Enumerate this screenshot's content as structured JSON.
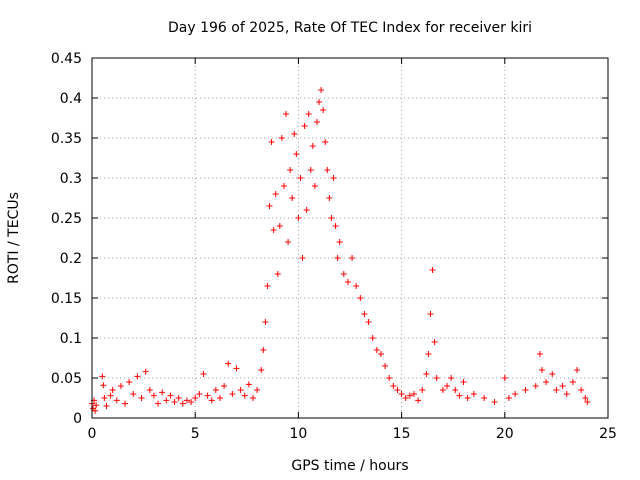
{
  "chart_data": {
    "type": "scatter",
    "title": "Day 196 of 2025, Rate Of TEC Index for receiver kiri",
    "xlabel": "GPS time / hours",
    "ylabel": "ROTI / TECUs",
    "xlim": [
      0,
      25
    ],
    "ylim": [
      0,
      0.45
    ],
    "xticks": [
      "0",
      "5",
      "10",
      "15",
      "20",
      "25"
    ],
    "yticks": [
      "0",
      "0.05",
      "0.1",
      "0.15",
      "0.2",
      "0.25",
      "0.3",
      "0.35",
      "0.4",
      "0.45"
    ],
    "grid": true,
    "marker": "plus",
    "color": "#ff0000",
    "series": [
      {
        "points": [
          [
            0.0,
            0.018
          ],
          [
            0.05,
            0.012
          ],
          [
            0.1,
            0.022
          ],
          [
            0.15,
            0.009
          ],
          [
            0.2,
            0.016
          ],
          [
            0.5,
            0.052
          ],
          [
            0.55,
            0.041
          ],
          [
            0.6,
            0.025
          ],
          [
            0.7,
            0.015
          ],
          [
            0.9,
            0.028
          ],
          [
            1.0,
            0.035
          ],
          [
            1.2,
            0.022
          ],
          [
            1.4,
            0.04
          ],
          [
            1.6,
            0.018
          ],
          [
            1.8,
            0.045
          ],
          [
            2.0,
            0.03
          ],
          [
            2.2,
            0.052
          ],
          [
            2.4,
            0.025
          ],
          [
            2.6,
            0.058
          ],
          [
            2.8,
            0.035
          ],
          [
            3.0,
            0.028
          ],
          [
            3.2,
            0.018
          ],
          [
            3.4,
            0.032
          ],
          [
            3.6,
            0.022
          ],
          [
            3.8,
            0.028
          ],
          [
            4.0,
            0.02
          ],
          [
            4.2,
            0.025
          ],
          [
            4.4,
            0.018
          ],
          [
            4.6,
            0.022
          ],
          [
            4.8,
            0.02
          ],
          [
            5.0,
            0.025
          ],
          [
            5.2,
            0.03
          ],
          [
            5.4,
            0.055
          ],
          [
            5.6,
            0.028
          ],
          [
            5.8,
            0.022
          ],
          [
            6.0,
            0.035
          ],
          [
            6.2,
            0.025
          ],
          [
            6.4,
            0.04
          ],
          [
            6.6,
            0.068
          ],
          [
            6.8,
            0.03
          ],
          [
            7.0,
            0.062
          ],
          [
            7.2,
            0.035
          ],
          [
            7.4,
            0.028
          ],
          [
            7.6,
            0.042
          ],
          [
            7.8,
            0.025
          ],
          [
            8.0,
            0.035
          ],
          [
            8.2,
            0.06
          ],
          [
            8.3,
            0.085
          ],
          [
            8.4,
            0.12
          ],
          [
            8.5,
            0.165
          ],
          [
            8.6,
            0.265
          ],
          [
            8.7,
            0.345
          ],
          [
            8.8,
            0.235
          ],
          [
            8.9,
            0.28
          ],
          [
            9.0,
            0.18
          ],
          [
            9.1,
            0.24
          ],
          [
            9.2,
            0.35
          ],
          [
            9.3,
            0.29
          ],
          [
            9.4,
            0.38
          ],
          [
            9.5,
            0.22
          ],
          [
            9.6,
            0.31
          ],
          [
            9.7,
            0.275
          ],
          [
            9.8,
            0.355
          ],
          [
            9.9,
            0.33
          ],
          [
            10.0,
            0.25
          ],
          [
            10.1,
            0.3
          ],
          [
            10.2,
            0.2
          ],
          [
            10.3,
            0.365
          ],
          [
            10.4,
            0.26
          ],
          [
            10.5,
            0.38
          ],
          [
            10.6,
            0.31
          ],
          [
            10.7,
            0.34
          ],
          [
            10.8,
            0.29
          ],
          [
            10.9,
            0.37
          ],
          [
            11.0,
            0.395
          ],
          [
            11.1,
            0.41
          ],
          [
            11.2,
            0.385
          ],
          [
            11.3,
            0.345
          ],
          [
            11.4,
            0.31
          ],
          [
            11.5,
            0.275
          ],
          [
            11.6,
            0.25
          ],
          [
            11.7,
            0.3
          ],
          [
            11.8,
            0.24
          ],
          [
            11.9,
            0.2
          ],
          [
            12.0,
            0.22
          ],
          [
            12.2,
            0.18
          ],
          [
            12.4,
            0.17
          ],
          [
            12.6,
            0.2
          ],
          [
            12.8,
            0.165
          ],
          [
            13.0,
            0.15
          ],
          [
            13.2,
            0.13
          ],
          [
            13.4,
            0.12
          ],
          [
            13.6,
            0.1
          ],
          [
            13.8,
            0.085
          ],
          [
            14.0,
            0.08
          ],
          [
            14.2,
            0.065
          ],
          [
            14.4,
            0.05
          ],
          [
            14.6,
            0.04
          ],
          [
            14.8,
            0.035
          ],
          [
            15.0,
            0.03
          ],
          [
            15.2,
            0.025
          ],
          [
            15.4,
            0.028
          ],
          [
            15.6,
            0.03
          ],
          [
            15.8,
            0.022
          ],
          [
            16.0,
            0.035
          ],
          [
            16.2,
            0.055
          ],
          [
            16.3,
            0.08
          ],
          [
            16.4,
            0.13
          ],
          [
            16.5,
            0.185
          ],
          [
            16.6,
            0.095
          ],
          [
            16.7,
            0.05
          ],
          [
            17.0,
            0.035
          ],
          [
            17.2,
            0.04
          ],
          [
            17.4,
            0.05
          ],
          [
            17.6,
            0.035
          ],
          [
            17.8,
            0.028
          ],
          [
            18.0,
            0.045
          ],
          [
            18.2,
            0.025
          ],
          [
            18.5,
            0.03
          ],
          [
            19.0,
            0.025
          ],
          [
            19.5,
            0.02
          ],
          [
            20.0,
            0.05
          ],
          [
            20.2,
            0.025
          ],
          [
            20.5,
            0.03
          ],
          [
            21.0,
            0.035
          ],
          [
            21.5,
            0.04
          ],
          [
            21.7,
            0.08
          ],
          [
            21.8,
            0.06
          ],
          [
            22.0,
            0.045
          ],
          [
            22.3,
            0.055
          ],
          [
            22.5,
            0.035
          ],
          [
            22.8,
            0.04
          ],
          [
            23.0,
            0.03
          ],
          [
            23.3,
            0.045
          ],
          [
            23.5,
            0.06
          ],
          [
            23.7,
            0.035
          ],
          [
            23.9,
            0.025
          ],
          [
            24.0,
            0.02
          ]
        ]
      }
    ]
  }
}
